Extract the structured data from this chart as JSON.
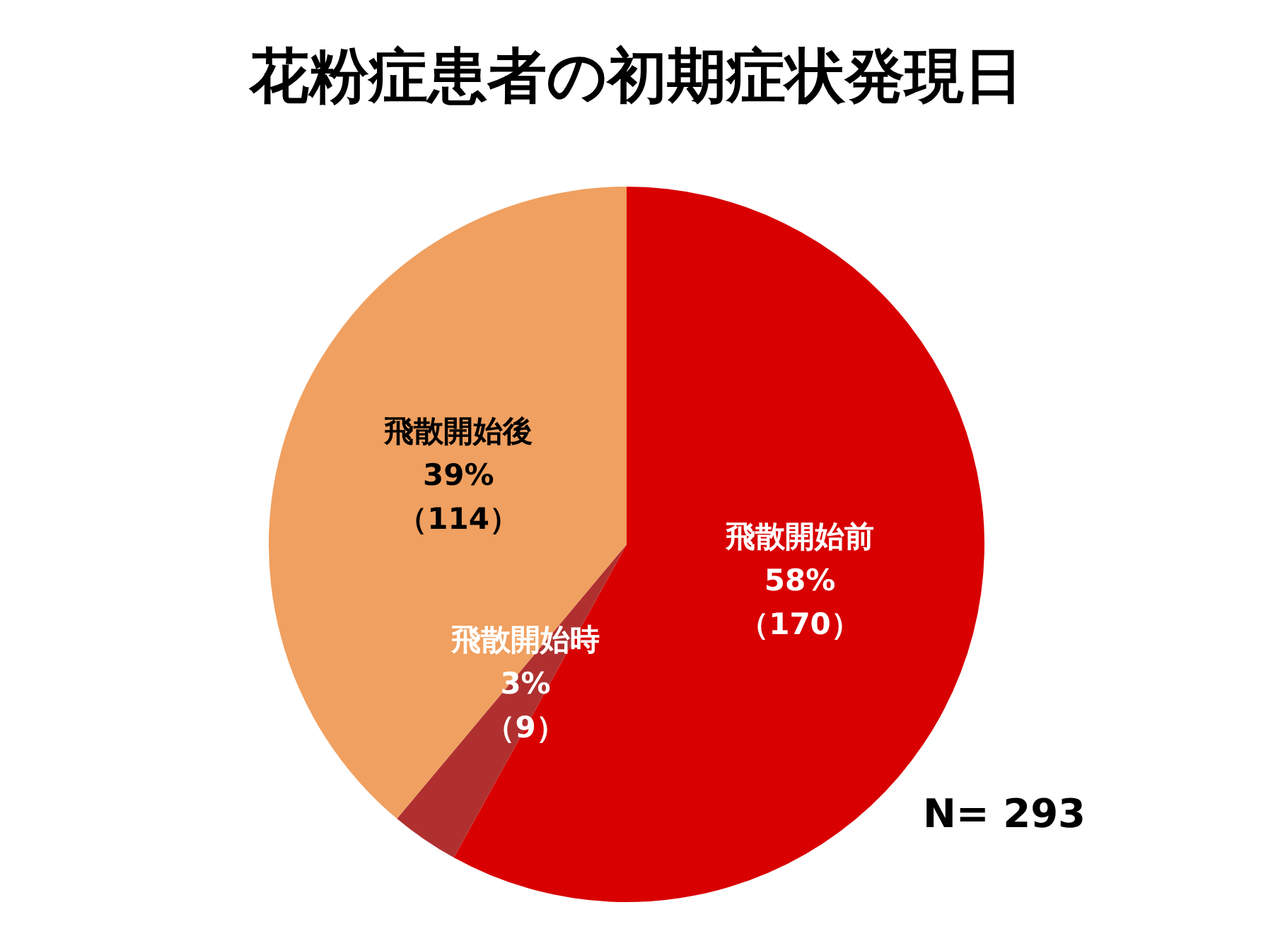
{
  "chart_data": {
    "type": "pie",
    "title": "花粉症患者の初期症状発現日",
    "categories": [
      "飛散開始前",
      "飛散開始時",
      "飛散開始後"
    ],
    "values": [
      170,
      9,
      114
    ],
    "colors": [
      "#d80000",
      "#b03030",
      "#f0a060"
    ],
    "value_labels": [
      "58%\n（170）",
      "3%\n（9）",
      "39%\n（114）"
    ],
    "annotations": [
      "N= 293"
    ],
    "legend": false
  }
}
